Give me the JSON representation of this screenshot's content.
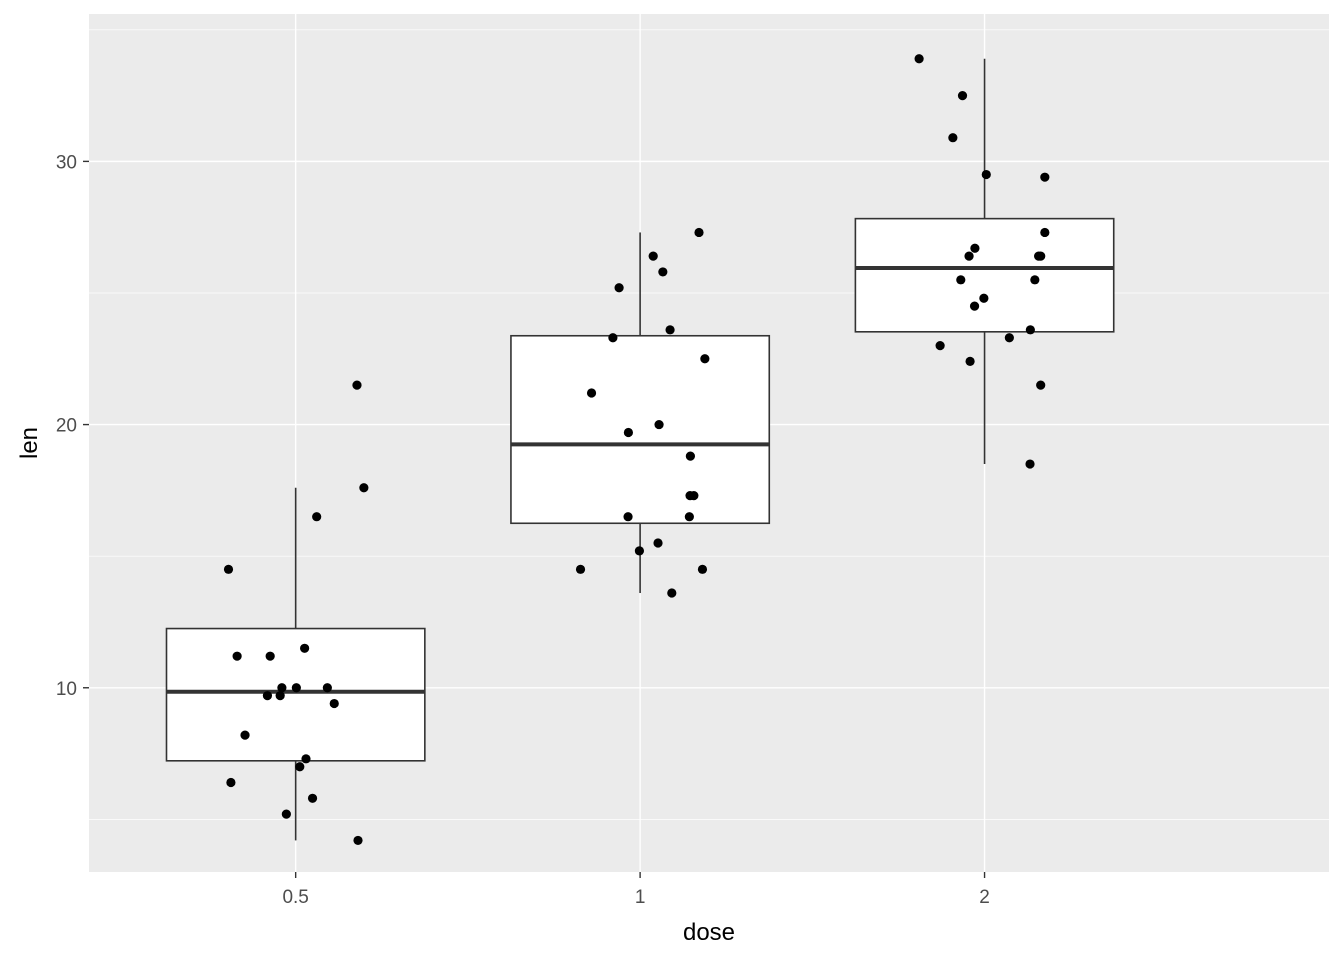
{
  "chart_data": {
    "type": "boxplot",
    "xlabel": "dose",
    "ylabel": "len",
    "categories": [
      "0.5",
      "1",
      "2"
    ],
    "ylim": [
      3.0,
      35.6
    ],
    "yticks": [
      10,
      20,
      30
    ],
    "grid": true,
    "boxes": [
      {
        "category": "0.5",
        "whisker_low": 4.2,
        "q1": 7.225,
        "median": 9.85,
        "q3": 12.25,
        "whisker_high": 17.6
      },
      {
        "category": "1",
        "whisker_low": 13.6,
        "q1": 16.25,
        "median": 19.25,
        "q3": 23.375,
        "whisker_high": 27.3
      },
      {
        "category": "2",
        "whisker_low": 18.5,
        "q1": 23.525,
        "median": 25.95,
        "q3": 27.825,
        "whisker_high": 33.9
      }
    ],
    "points": [
      {
        "category": "0.5",
        "jitter": [
          -0.195,
          0.178,
          0.198,
          0.061,
          -0.074,
          0.026,
          -0.045,
          0.002,
          -0.082,
          0.092,
          -0.04,
          0.112,
          -0.147,
          0.049,
          0.181,
          -0.027,
          0.03,
          0.012,
          -0.188,
          -0.17
        ],
        "values": [
          14.5,
          21.5,
          17.6,
          16.5,
          11.2,
          11.5,
          9.7,
          10.0,
          9.7,
          10.0,
          10.0,
          9.4,
          8.2,
          5.8,
          4.2,
          5.2,
          7.3,
          7.0,
          6.4,
          11.2
        ]
      },
      {
        "category": "1",
        "jitter": [
          -0.173,
          -0.141,
          0.066,
          0.171,
          0.188,
          0.038,
          0.145,
          0.087,
          0.146,
          -0.079,
          -0.034,
          -0.002,
          0.055,
          0.156,
          0.143,
          0.181,
          0.092,
          0.052,
          -0.035,
          -0.061
        ],
        "values": [
          14.5,
          21.2,
          25.8,
          27.3,
          22.5,
          26.4,
          17.3,
          23.6,
          18.8,
          23.3,
          19.7,
          15.2,
          20.0,
          17.3,
          16.5,
          14.5,
          13.6,
          15.5,
          16.5,
          25.2
        ]
      },
      {
        "category": "2",
        "jitter": [
          -0.19,
          -0.092,
          -0.064,
          0.005,
          0.175,
          0.157,
          0.175,
          -0.028,
          0.163,
          -0.069,
          -0.029,
          0.146,
          -0.129,
          -0.042,
          0.072,
          0.133,
          -0.045,
          0.163,
          0.132,
          -0.002
        ],
        "values": [
          33.9,
          30.9,
          32.5,
          29.5,
          29.4,
          26.4,
          27.3,
          26.7,
          26.4,
          25.5,
          24.5,
          25.5,
          23.0,
          22.4,
          23.3,
          23.6,
          26.4,
          21.5,
          18.5,
          24.8
        ]
      }
    ]
  }
}
